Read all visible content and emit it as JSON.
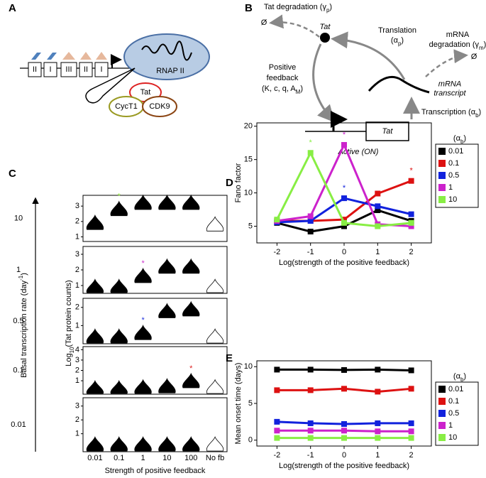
{
  "panels": {
    "A": {
      "letter": "A",
      "exons": [
        "II",
        "I",
        "III",
        "II",
        "I"
      ],
      "rnap": "RNAP II",
      "tat": "Tat",
      "cyct1": "CycT1",
      "cdk9": "CDK9"
    },
    "B": {
      "letter": "B",
      "tat_degradation": [
        [
          "Tat degradation (γ",
          {
            "sub": "p"
          },
          ")"
        ]
      ],
      "null_left": "Ø",
      "tat_protein": "Tat",
      "translation": [
        [
          "Translation"
        ],
        [
          "(α",
          {
            "sub": "p"
          },
          ")"
        ]
      ],
      "mrna_degradation": [
        [
          "mRNA"
        ],
        [
          "degradation (γ",
          {
            "sub": "m"
          },
          ")"
        ]
      ],
      "null_right": "Ø",
      "positive_feedback": [
        [
          "Positive"
        ],
        [
          "feedback"
        ],
        [
          "(K, c, q, A",
          {
            "sub": "M"
          },
          ")"
        ]
      ],
      "mrna_transcript": [
        [
          "mRNA"
        ],
        [
          "transcript"
        ]
      ],
      "transcription": [
        [
          "Transcription (α",
          {
            "sub": "b"
          },
          ")"
        ]
      ],
      "tat_gene": "Tat",
      "active": "Active (ON)"
    }
  },
  "chart_data": [
    {
      "type": "violin",
      "letter": "C",
      "outer_ylabel": [
        [
          "Basal transcription rate (day",
          {
            "sup": "-1"
          },
          ")"
        ]
      ],
      "ylabel": [
        [
          "Log",
          {
            "sub": "10"
          },
          "(Tat protein counts)"
        ]
      ],
      "xlabel": "Strength of positive feedback",
      "categories": [
        "0.01",
        "0.1",
        "1",
        "10",
        "100",
        "No fb"
      ],
      "fills": [
        "#000000",
        "#000000",
        "#000000",
        "#000000",
        "#000000",
        "#ffffff"
      ],
      "series": [
        {
          "name": "10",
          "values": [
            1.8,
            2.7,
            3.1,
            3.1,
            3.1,
            1.7
          ],
          "ylim": [
            0.7,
            3.7
          ],
          "yticks": [
            1,
            2,
            3
          ],
          "marker": "*",
          "marker_category": "0.1",
          "marker_color": "#99ee44"
        },
        {
          "name": "1",
          "values": [
            0.8,
            0.8,
            1.5,
            2.1,
            2.1,
            0.8
          ],
          "ylim": [
            0.5,
            3.5
          ],
          "yticks": [
            1,
            2,
            3
          ],
          "marker": "*",
          "marker_category": "1",
          "marker_color": "#cc33cc"
        },
        {
          "name": "0.5",
          "values": [
            0.3,
            0.3,
            0.5,
            1.7,
            1.8,
            0.3
          ],
          "ylim": [
            0,
            2.5
          ],
          "yticks": [
            1,
            2
          ],
          "marker": "*",
          "marker_category": "1",
          "marker_color": "#2233dd"
        },
        {
          "name": "0.1",
          "values": [
            0.1,
            0.1,
            0.2,
            0.3,
            0.8,
            0.2
          ],
          "ylim": [
            -0.3,
            4.3
          ],
          "yticks": [
            1,
            2,
            3,
            4
          ],
          "marker": "*",
          "marker_category": "100",
          "marker_color": "#dd2222"
        },
        {
          "name": "0.01",
          "values": [
            0.1,
            0.1,
            0.1,
            0.1,
            0.1,
            0.1
          ],
          "ylim": [
            -0.3,
            3.6
          ],
          "yticks": [
            1,
            2,
            3
          ]
        }
      ]
    },
    {
      "type": "line",
      "letter": "D",
      "ylabel": "Fano factor",
      "xlabel": "Log(strength of the positive feedback)",
      "x": [
        -2,
        -1,
        0,
        1,
        2
      ],
      "xlim": [
        -2.6,
        2.6
      ],
      "xticks": [
        -2,
        -1,
        0,
        1,
        2
      ],
      "ylim": [
        2.5,
        20.5
      ],
      "yticks": [
        5,
        10,
        15,
        20
      ],
      "legend_title": [
        [
          "(α",
          {
            "sub": "b"
          },
          ")"
        ]
      ],
      "series": [
        {
          "name": "0.01",
          "color": "#000000",
          "values": [
            5.5,
            4.2,
            5.0,
            7.4,
            5.8
          ]
        },
        {
          "name": "0.1",
          "color": "#dd1111",
          "values": [
            5.8,
            5.8,
            6.0,
            9.9,
            11.8
          ],
          "marker": "*",
          "marker_x": 2
        },
        {
          "name": "0.5",
          "color": "#1122dd",
          "values": [
            5.6,
            5.8,
            9.2,
            8.0,
            6.8
          ],
          "marker": "*",
          "marker_x": 0
        },
        {
          "name": "1",
          "color": "#cc22cc",
          "values": [
            5.8,
            6.5,
            17.2,
            5.3,
            5.0
          ],
          "marker": "*",
          "marker_x": 0
        },
        {
          "name": "10",
          "color": "#88ee44",
          "values": [
            6.0,
            16.0,
            5.5,
            5.0,
            5.5
          ],
          "marker": "*",
          "marker_x": -1
        }
      ]
    },
    {
      "type": "line",
      "letter": "E",
      "ylabel": "Mean onset time (days)",
      "xlabel": "Log(strength of the positive feedback)",
      "x": [
        -2,
        -1,
        0,
        1,
        2
      ],
      "xlim": [
        -2.6,
        2.6
      ],
      "xticks": [
        -2,
        -1,
        0,
        1,
        2
      ],
      "ylim": [
        -0.8,
        10.8
      ],
      "yticks": [
        0,
        5,
        10
      ],
      "legend_title": [
        [
          "(α",
          {
            "sub": "b"
          },
          ")"
        ]
      ],
      "series": [
        {
          "name": "0.01",
          "color": "#000000",
          "values": [
            9.6,
            9.6,
            9.55,
            9.6,
            9.5
          ]
        },
        {
          "name": "0.1",
          "color": "#dd1111",
          "values": [
            6.8,
            6.8,
            7.0,
            6.6,
            7.0
          ]
        },
        {
          "name": "0.5",
          "color": "#1122dd",
          "values": [
            2.5,
            2.3,
            2.2,
            2.3,
            2.3
          ]
        },
        {
          "name": "1",
          "color": "#cc22cc",
          "values": [
            1.3,
            1.3,
            1.3,
            1.2,
            1.2
          ]
        },
        {
          "name": "10",
          "color": "#88ee44",
          "values": [
            0.3,
            0.3,
            0.3,
            0.3,
            0.3
          ]
        }
      ]
    }
  ]
}
